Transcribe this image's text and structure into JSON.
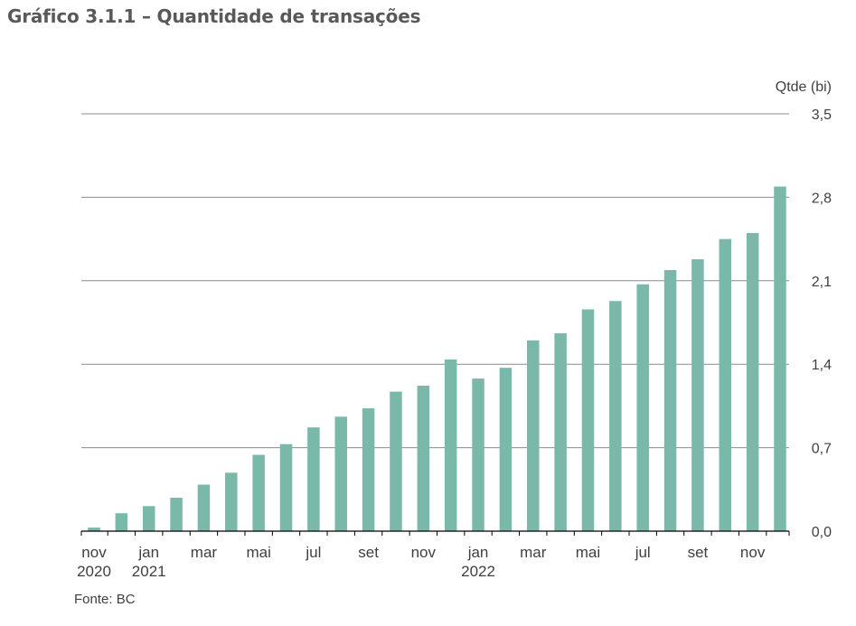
{
  "title": "Gráfico 3.1.1 – Quantidade de transações",
  "source": "Fonte: BC",
  "chart_data": {
    "type": "bar",
    "ylabel": "Qtde (bi)",
    "ylim": [
      0,
      3.5
    ],
    "yticks": [
      "0,0",
      "0,7",
      "1,4",
      "2,1",
      "2,8",
      "3,5"
    ],
    "y_axis_side": "right",
    "grid": true,
    "bar_color": "#7ab8aa",
    "x_tick_labels": [
      {
        "month": "nov",
        "year": "2020"
      },
      {
        "month": "jan",
        "year": "2021"
      },
      {
        "month": "mar",
        "year": ""
      },
      {
        "month": "mai",
        "year": ""
      },
      {
        "month": "jul",
        "year": ""
      },
      {
        "month": "set",
        "year": ""
      },
      {
        "month": "nov",
        "year": ""
      },
      {
        "month": "jan",
        "year": "2022"
      },
      {
        "month": "mar",
        "year": ""
      },
      {
        "month": "mai",
        "year": ""
      },
      {
        "month": "jul",
        "year": ""
      },
      {
        "month": "set",
        "year": ""
      },
      {
        "month": "nov",
        "year": ""
      }
    ],
    "categories": [
      "nov 2020",
      "dez 2020",
      "jan 2021",
      "fev 2021",
      "mar 2021",
      "abr 2021",
      "mai 2021",
      "jun 2021",
      "jul 2021",
      "ago 2021",
      "set 2021",
      "out 2021",
      "nov 2021",
      "dez 2021",
      "jan 2022",
      "fev 2022",
      "mar 2022",
      "abr 2022",
      "mai 2022",
      "jun 2022",
      "jul 2022",
      "ago 2022",
      "set 2022",
      "out 2022",
      "nov 2022",
      "dez 2022"
    ],
    "values": [
      0.03,
      0.15,
      0.21,
      0.28,
      0.39,
      0.49,
      0.64,
      0.73,
      0.87,
      0.96,
      1.03,
      1.17,
      1.22,
      1.44,
      1.28,
      1.37,
      1.6,
      1.66,
      1.86,
      1.93,
      2.07,
      2.19,
      2.28,
      2.45,
      2.5,
      2.89
    ]
  }
}
